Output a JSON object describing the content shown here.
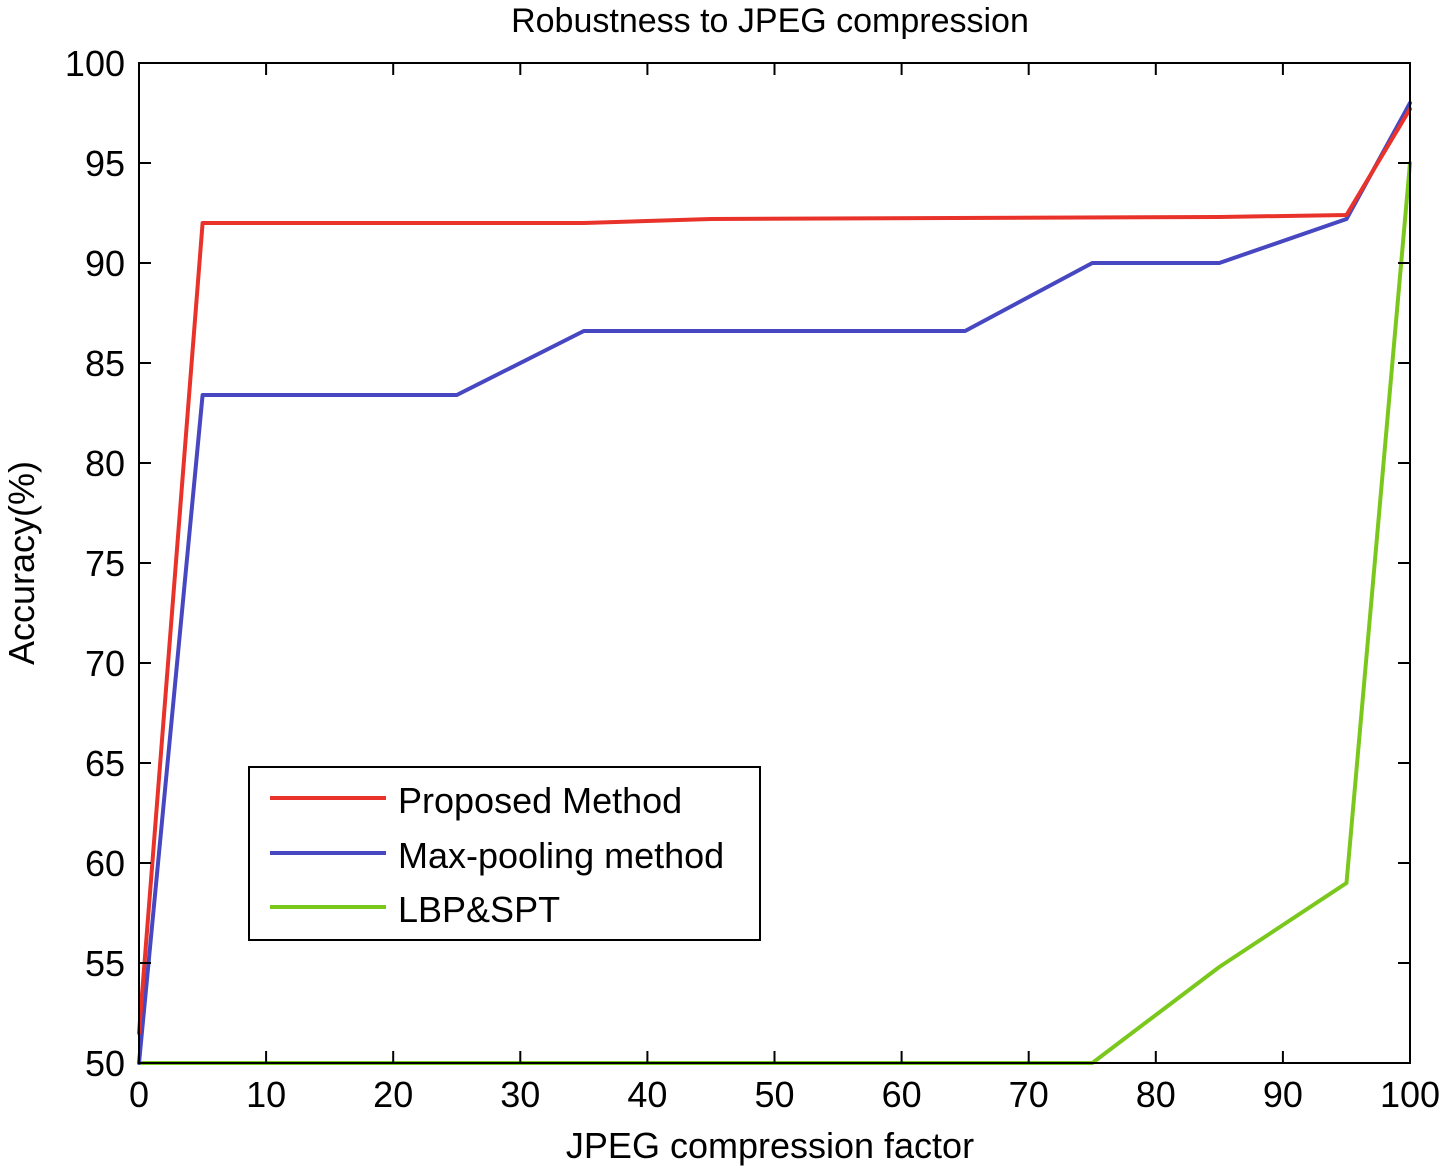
{
  "chart_data": {
    "type": "line",
    "title": "Robustness to JPEG compression",
    "xlabel": "JPEG compression factor",
    "ylabel": "Accuracy(%)",
    "xlim": [
      0,
      100
    ],
    "ylim": [
      50,
      100
    ],
    "xticks": [
      0,
      10,
      20,
      30,
      40,
      50,
      60,
      70,
      80,
      90,
      100
    ],
    "yticks": [
      50,
      55,
      60,
      65,
      70,
      75,
      80,
      85,
      90,
      95,
      100
    ],
    "grid": false,
    "legend_position": "lower-left",
    "series": [
      {
        "name": "Proposed Method",
        "color": "#e8322a",
        "x": [
          0,
          5,
          35,
          45,
          85,
          95,
          100
        ],
        "y": [
          51.5,
          92,
          92,
          92.2,
          92.3,
          92.4,
          97.7
        ]
      },
      {
        "name": "Max-pooling method",
        "color": "#4747c2",
        "x": [
          0,
          5,
          25,
          35,
          65,
          75,
          85,
          95,
          100
        ],
        "y": [
          50,
          83.4,
          83.4,
          86.6,
          86.6,
          90,
          90,
          92.2,
          98
        ]
      },
      {
        "name": "LBP&SPT",
        "color": "#7ac81c",
        "x": [
          0,
          75,
          85,
          95,
          100
        ],
        "y": [
          50,
          50,
          54.8,
          59,
          95
        ]
      }
    ]
  }
}
